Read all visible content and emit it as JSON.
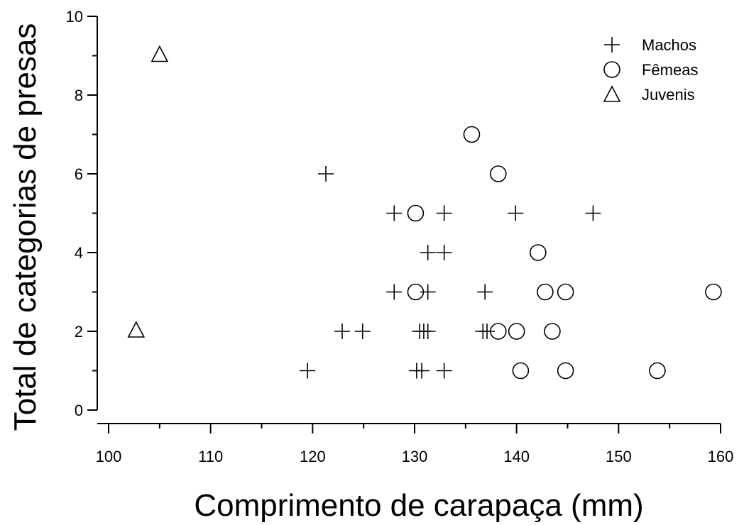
{
  "chart_data": {
    "type": "scatter",
    "xlabel": "Comprimento de carapaça (mm)",
    "ylabel": "Total de categorias de presas",
    "xlim": [
      100,
      160
    ],
    "ylim": [
      0,
      10
    ],
    "x_ticks": [
      100,
      110,
      120,
      130,
      140,
      150,
      160
    ],
    "y_ticks": [
      0,
      2,
      4,
      6,
      8,
      10
    ],
    "grid": false,
    "legend_position": "top-right",
    "series": [
      {
        "name": "Machos",
        "marker": "plus",
        "points": [
          {
            "x": 121.3,
            "y": 6
          },
          {
            "x": 128.0,
            "y": 5
          },
          {
            "x": 132.9,
            "y": 5
          },
          {
            "x": 139.9,
            "y": 5
          },
          {
            "x": 147.5,
            "y": 5
          },
          {
            "x": 131.3,
            "y": 4
          },
          {
            "x": 132.9,
            "y": 4
          },
          {
            "x": 128.0,
            "y": 3
          },
          {
            "x": 131.3,
            "y": 3
          },
          {
            "x": 136.9,
            "y": 3
          },
          {
            "x": 122.9,
            "y": 2
          },
          {
            "x": 124.9,
            "y": 2
          },
          {
            "x": 130.5,
            "y": 2
          },
          {
            "x": 130.9,
            "y": 2
          },
          {
            "x": 131.3,
            "y": 2
          },
          {
            "x": 136.7,
            "y": 2
          },
          {
            "x": 137.1,
            "y": 2
          },
          {
            "x": 119.5,
            "y": 1
          },
          {
            "x": 130.2,
            "y": 1
          },
          {
            "x": 130.7,
            "y": 1
          },
          {
            "x": 132.9,
            "y": 1
          }
        ]
      },
      {
        "name": "Fêmeas",
        "marker": "circle",
        "points": [
          {
            "x": 135.6,
            "y": 7
          },
          {
            "x": 138.2,
            "y": 6
          },
          {
            "x": 130.1,
            "y": 5
          },
          {
            "x": 142.1,
            "y": 4
          },
          {
            "x": 130.1,
            "y": 3
          },
          {
            "x": 142.8,
            "y": 3
          },
          {
            "x": 144.8,
            "y": 3
          },
          {
            "x": 159.3,
            "y": 3
          },
          {
            "x": 138.2,
            "y": 2
          },
          {
            "x": 140.0,
            "y": 2
          },
          {
            "x": 143.5,
            "y": 2
          },
          {
            "x": 140.4,
            "y": 1
          },
          {
            "x": 144.8,
            "y": 1
          },
          {
            "x": 153.8,
            "y": 1
          }
        ]
      },
      {
        "name": "Juvenis",
        "marker": "triangle",
        "points": [
          {
            "x": 105.0,
            "y": 9
          },
          {
            "x": 102.7,
            "y": 2
          }
        ]
      }
    ]
  }
}
